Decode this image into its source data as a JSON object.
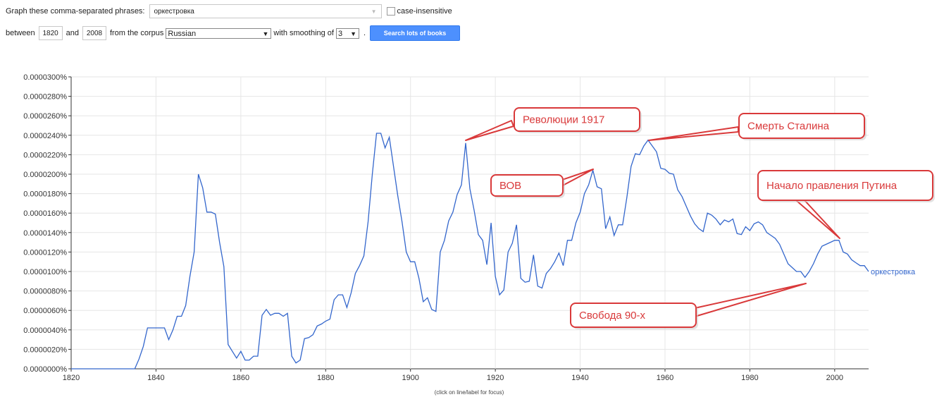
{
  "form": {
    "graph_label": "Graph these comma-separated phrases:",
    "phrases": "оркестровка",
    "case_label": "case-insensitive",
    "between_label": "between",
    "start_year": "1820",
    "and_label": "and",
    "end_year": "2008",
    "corpus_label": "from the corpus",
    "corpus": "Russian",
    "smoothing_label": "with smoothing of",
    "smoothing": "3",
    "period": ".",
    "search_button": "Search lots of books"
  },
  "chart_data": {
    "type": "line",
    "title": "",
    "xlabel": "",
    "ylabel": "",
    "footer": "(click on line/label for focus)",
    "xlim": [
      1820,
      2008
    ],
    "ylim": [
      0,
      3e-06
    ],
    "xticks": [
      1820,
      1840,
      1860,
      1880,
      1900,
      1920,
      1940,
      1960,
      1980,
      2000
    ],
    "yticks": [
      "0.0000000%",
      "0.0000020%",
      "0.0000040%",
      "0.0000060%",
      "0.0000080%",
      "0.0000100%",
      "0.0000120%",
      "0.0000140%",
      "0.0000160%",
      "0.0000180%",
      "0.0000200%",
      "0.0000220%",
      "0.0000240%",
      "0.0000260%",
      "0.0000280%",
      "0.0000300%"
    ],
    "line_color": "#3366cc",
    "grid": true,
    "series": [
      {
        "name": "оркестровка",
        "x": [
          1820,
          1835,
          1836,
          1837,
          1838,
          1839,
          1840,
          1841,
          1842,
          1843,
          1844,
          1845,
          1846,
          1847,
          1848,
          1849,
          1850,
          1851,
          1852,
          1853,
          1854,
          1855,
          1856,
          1857,
          1858,
          1859,
          1860,
          1861,
          1862,
          1863,
          1864,
          1865,
          1866,
          1867,
          1868,
          1869,
          1870,
          1871,
          1872,
          1873,
          1874,
          1875,
          1876,
          1877,
          1878,
          1879,
          1880,
          1881,
          1882,
          1883,
          1884,
          1885,
          1886,
          1887,
          1888,
          1889,
          1890,
          1891,
          1892,
          1893,
          1894,
          1895,
          1896,
          1897,
          1898,
          1899,
          1900,
          1901,
          1902,
          1903,
          1904,
          1905,
          1906,
          1907,
          1908,
          1909,
          1910,
          1911,
          1912,
          1913,
          1914,
          1915,
          1916,
          1917,
          1918,
          1919,
          1920,
          1921,
          1922,
          1923,
          1924,
          1925,
          1926,
          1927,
          1928,
          1929,
          1930,
          1931,
          1932,
          1933,
          1934,
          1935,
          1936,
          1937,
          1938,
          1939,
          1940,
          1941,
          1942,
          1943,
          1944,
          1945,
          1946,
          1947,
          1948,
          1949,
          1950,
          1951,
          1952,
          1953,
          1954,
          1955,
          1956,
          1957,
          1958,
          1959,
          1960,
          1961,
          1962,
          1963,
          1964,
          1965,
          1966,
          1967,
          1968,
          1969,
          1970,
          1971,
          1972,
          1973,
          1974,
          1975,
          1976,
          1977,
          1978,
          1979,
          1980,
          1981,
          1982,
          1983,
          1984,
          1985,
          1986,
          1987,
          1988,
          1989,
          1990,
          1991,
          1992,
          1993,
          1994,
          1995,
          1996,
          1997,
          1998,
          1999,
          2000,
          2001,
          2002,
          2003,
          2004,
          2005,
          2006,
          2007,
          2008
        ],
        "y": [
          0,
          0,
          0.01,
          0.023,
          0.042,
          0.042,
          0.042,
          0.042,
          0.042,
          0.03,
          0.04,
          0.054,
          0.054,
          0.065,
          0.095,
          0.12,
          0.2,
          0.186,
          0.161,
          0.161,
          0.159,
          0.13,
          0.105,
          0.025,
          0.018,
          0.011,
          0.018,
          0.009,
          0.009,
          0.013,
          0.013,
          0.055,
          0.061,
          0.055,
          0.057,
          0.057,
          0.054,
          0.057,
          0.013,
          0.006,
          0.009,
          0.031,
          0.032,
          0.035,
          0.044,
          0.046,
          0.049,
          0.051,
          0.071,
          0.076,
          0.076,
          0.063,
          0.078,
          0.098,
          0.106,
          0.116,
          0.151,
          0.2,
          0.242,
          0.242,
          0.227,
          0.238,
          0.208,
          0.178,
          0.151,
          0.12,
          0.11,
          0.11,
          0.093,
          0.069,
          0.073,
          0.061,
          0.059,
          0.12,
          0.132,
          0.152,
          0.161,
          0.179,
          0.189,
          0.232,
          0.185,
          0.163,
          0.138,
          0.132,
          0.107,
          0.15,
          0.095,
          0.076,
          0.081,
          0.12,
          0.129,
          0.148,
          0.093,
          0.089,
          0.09,
          0.117,
          0.085,
          0.083,
          0.098,
          0.103,
          0.11,
          0.119,
          0.106,
          0.132,
          0.132,
          0.15,
          0.161,
          0.18,
          0.189,
          0.204,
          0.187,
          0.185,
          0.144,
          0.156,
          0.137,
          0.148,
          0.148,
          0.176,
          0.208,
          0.221,
          0.22,
          0.229,
          0.235,
          0.229,
          0.223,
          0.206,
          0.205,
          0.201,
          0.2,
          0.184,
          0.177,
          0.167,
          0.157,
          0.149,
          0.144,
          0.141,
          0.16,
          0.158,
          0.154,
          0.148,
          0.153,
          0.151,
          0.154,
          0.139,
          0.138,
          0.146,
          0.142,
          0.149,
          0.151,
          0.148,
          0.14,
          0.137,
          0.134,
          0.128,
          0.118,
          0.108,
          0.104,
          0.1,
          0.1,
          0.094,
          0.1,
          0.108,
          0.118,
          0.126,
          0.128,
          0.13,
          0.132,
          0.132,
          0.12,
          0.118,
          0.112,
          0.109,
          0.106,
          0.106,
          0.1
        ],
        "y_scale_note": "y values listed in units of 1e-5 percent"
      }
    ],
    "annotations": [
      {
        "text": "Революции 1917",
        "target_x": 1913,
        "target_y": 0.232
      },
      {
        "text": "Смерть Сталина",
        "target_x": 1956,
        "target_y": 0.235
      },
      {
        "text": "ВОВ",
        "target_x": 1943,
        "target_y": 0.205
      },
      {
        "text": "Начало правления Путина",
        "target_x": 2001,
        "target_y": 0.133
      },
      {
        "text": "Свобода 90-х",
        "target_x": 1993,
        "target_y": 0.089
      }
    ]
  }
}
